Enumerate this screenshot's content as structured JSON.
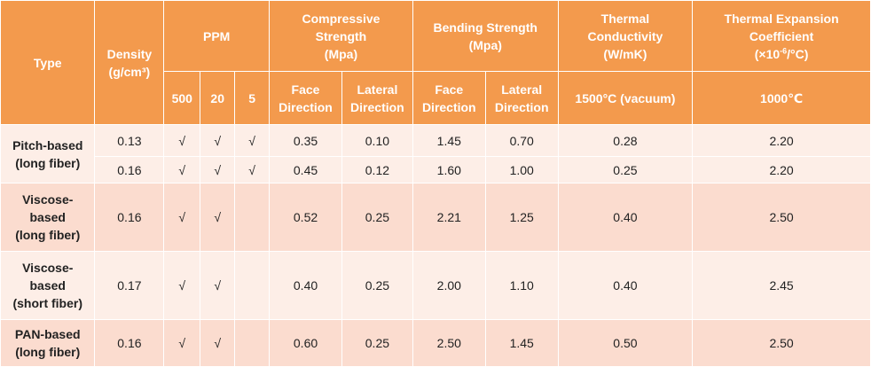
{
  "header": {
    "type": "Type",
    "density_line1": "Density",
    "density_line2": "(g/cm³)",
    "ppm": "PPM",
    "ppm_sub": [
      "500",
      "20",
      "5"
    ],
    "compressive_line1": "Compressive",
    "compressive_line2": "Strength",
    "compressive_line3": "(Mpa)",
    "bending_line1": "Bending Strength",
    "bending_line2": "(Mpa)",
    "thermal_cond_line1": "Thermal",
    "thermal_cond_line2": "Conductivity",
    "thermal_cond_line3": "(W/mK)",
    "thermal_exp_line1": "Thermal Expansion",
    "thermal_exp_line2": "Coefficient",
    "thermal_exp_line3_prefix": "(×10",
    "thermal_exp_line3_sup": "-6",
    "thermal_exp_line3_suffix": "/°C)",
    "face_line1": "Face",
    "face_line2": "Direction",
    "lateral_line1": "Lateral",
    "lateral_line2": "Direction",
    "cond_condition": "1500°C (vacuum)",
    "exp_condition": "1000℃"
  },
  "rows": [
    {
      "type": "Pitch-based\n(long fiber)",
      "density": "0.13",
      "ppm500": "√",
      "ppm20": "√",
      "ppm5": "√",
      "comp_face": "0.35",
      "comp_lat": "0.10",
      "bend_face": "1.45",
      "bend_lat": "0.70",
      "cond": "0.28",
      "exp": "2.20"
    },
    {
      "type": "",
      "density": "0.16",
      "ppm500": "√",
      "ppm20": "√",
      "ppm5": "√",
      "comp_face": "0.45",
      "comp_lat": "0.12",
      "bend_face": "1.60",
      "bend_lat": "1.00",
      "cond": "0.25",
      "exp": "2.20"
    },
    {
      "type": "Viscose-\nbased\n(long fiber)",
      "density": "0.16",
      "ppm500": "√",
      "ppm20": "√",
      "ppm5": "",
      "comp_face": "0.52",
      "comp_lat": "0.25",
      "bend_face": "2.21",
      "bend_lat": "1.25",
      "cond": "0.40",
      "exp": "2.50"
    },
    {
      "type": "Viscose-\nbased\n(short fiber)",
      "density": "0.17",
      "ppm500": "√",
      "ppm20": "√",
      "ppm5": "",
      "comp_face": "0.40",
      "comp_lat": "0.25",
      "bend_face": "2.00",
      "bend_lat": "1.10",
      "cond": "0.40",
      "exp": "2.45"
    },
    {
      "type": "PAN-based\n(long fiber)",
      "density": "0.16",
      "ppm500": "√",
      "ppm20": "√",
      "ppm5": "",
      "comp_face": "0.60",
      "comp_lat": "0.25",
      "bend_face": "2.50",
      "bend_lat": "1.45",
      "cond": "0.50",
      "exp": "2.50"
    }
  ],
  "colors": {
    "header_bg": "#f39a4d",
    "band_light": "#fdeee7",
    "band_dark": "#fbdccf"
  }
}
